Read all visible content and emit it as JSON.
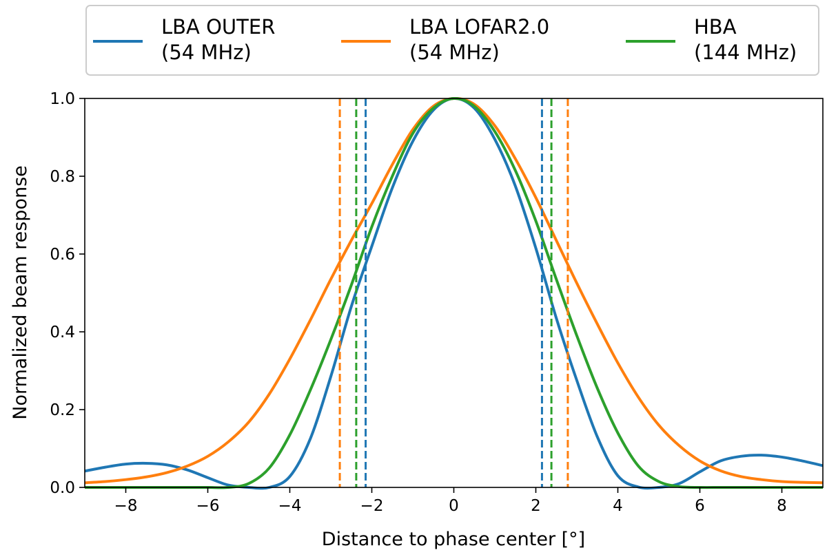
{
  "chart_data": {
    "type": "line",
    "title": "",
    "xlabel": "Distance to phase center [°]",
    "ylabel": "Normalized beam response",
    "xlim": [
      -9,
      9
    ],
    "ylim": [
      0,
      1
    ],
    "grid": false,
    "legend_position": "top-center (outside)",
    "xticks": [
      -8,
      -6,
      -4,
      -2,
      0,
      2,
      4,
      6,
      8
    ],
    "xtick_labels": [
      "−8",
      "−6",
      "−4",
      "−2",
      "0",
      "2",
      "4",
      "6",
      "8"
    ],
    "yticks": [
      0.0,
      0.2,
      0.4,
      0.6,
      0.8,
      1.0
    ],
    "ytick_labels": [
      "0.0",
      "0.2",
      "0.4",
      "0.6",
      "0.8",
      "1.0"
    ],
    "x": [
      -9,
      -8.5,
      -8,
      -7.5,
      -7,
      -6.5,
      -6,
      -5.5,
      -5,
      -4.5,
      -4,
      -3.5,
      -3,
      -2.5,
      -2,
      -1.5,
      -1,
      -0.5,
      0,
      0.5,
      1,
      1.5,
      2,
      2.5,
      3,
      3.5,
      4,
      4.5,
      5,
      5.5,
      6,
      6.5,
      7,
      7.5,
      8,
      8.5,
      9
    ],
    "series": [
      {
        "name": "LBA OUTER (54 MHz)",
        "label_line1": "LBA OUTER",
        "label_line2": "(54 MHz)",
        "color": "#1f77b4",
        "values": [
          0.042,
          0.052,
          0.06,
          0.062,
          0.058,
          0.045,
          0.025,
          0.006,
          0.0,
          0.0,
          0.028,
          0.125,
          0.285,
          0.465,
          0.62,
          0.77,
          0.89,
          0.97,
          1.0,
          0.975,
          0.895,
          0.775,
          0.615,
          0.435,
          0.275,
          0.13,
          0.03,
          0.001,
          0.0,
          0.01,
          0.04,
          0.068,
          0.08,
          0.083,
          0.078,
          0.068,
          0.056
        ],
        "hpbw_markers": [
          -2.15,
          2.15
        ]
      },
      {
        "name": "LBA LOFAR2.0 (54 MHz)",
        "label_line1": "LBA LOFAR2.0",
        "label_line2": "(54 MHz)",
        "color": "#ff7f0e",
        "values": [
          0.012,
          0.015,
          0.02,
          0.027,
          0.038,
          0.055,
          0.08,
          0.117,
          0.168,
          0.24,
          0.33,
          0.43,
          0.535,
          0.635,
          0.73,
          0.83,
          0.92,
          0.98,
          1.0,
          0.985,
          0.93,
          0.845,
          0.745,
          0.635,
          0.525,
          0.42,
          0.32,
          0.232,
          0.16,
          0.107,
          0.068,
          0.043,
          0.028,
          0.02,
          0.015,
          0.013,
          0.012
        ],
        "hpbw_markers": [
          -2.78,
          2.78
        ]
      },
      {
        "name": "HBA (144 MHz)",
        "label_line1": "HBA",
        "label_line2": "(144 MHz)",
        "color": "#2ca02c",
        "values": [
          0.0,
          0.0,
          0.0,
          0.0,
          0.0,
          0.0,
          0.0,
          0.0,
          0.01,
          0.05,
          0.135,
          0.25,
          0.38,
          0.52,
          0.67,
          0.8,
          0.91,
          0.975,
          1.0,
          0.98,
          0.915,
          0.815,
          0.685,
          0.535,
          0.39,
          0.255,
          0.14,
          0.055,
          0.015,
          0.002,
          0.0,
          0.0,
          0.0,
          0.0,
          0.0,
          0.0,
          0.0
        ],
        "hpbw_markers": [
          -2.38,
          2.38
        ]
      }
    ]
  }
}
